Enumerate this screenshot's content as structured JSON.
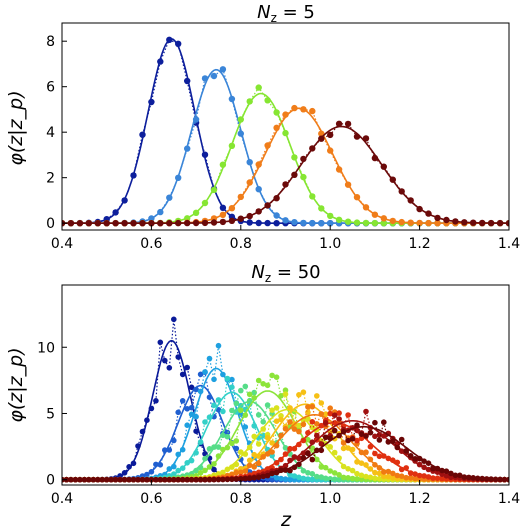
{
  "figure": {
    "xlabel": "z"
  },
  "chart_data": [
    {
      "type": "line",
      "title": "N_z = 5",
      "title_main": "N",
      "title_sub": "z",
      "title_rest": " = 5",
      "ylabel": "φ(z|z_p)",
      "xlim": [
        0.4,
        1.4
      ],
      "ylim": [
        -0.3,
        8.8
      ],
      "xticks": [
        "0.4",
        "0.6",
        "0.8",
        "1.0",
        "1.2",
        "1.4"
      ],
      "yticks": [
        "0",
        "2",
        "4",
        "6",
        "8"
      ],
      "grid": false,
      "series": [
        {
          "mu": 0.645,
          "sigma": 0.052,
          "amp": 8.1,
          "color": "#0d1f9c"
        },
        {
          "mu": 0.745,
          "sigma": 0.055,
          "amp": 6.75,
          "color": "#3a85d8"
        },
        {
          "mu": 0.845,
          "sigma": 0.065,
          "amp": 5.7,
          "color": "#86e632"
        },
        {
          "mu": 0.93,
          "sigma": 0.075,
          "amp": 5.05,
          "color": "#f07d1a"
        },
        {
          "mu": 1.025,
          "sigma": 0.09,
          "amp": 4.25,
          "color": "#6b0a0a"
        }
      ]
    },
    {
      "type": "line",
      "title": "N_z = 50",
      "title_main": "N",
      "title_sub": "z",
      "title_rest": " = 50",
      "ylabel": "φ(z|z_p)",
      "xlim": [
        0.4,
        1.4
      ],
      "ylim": [
        -0.4,
        14.7
      ],
      "xticks": [
        "0.4",
        "0.6",
        "0.8",
        "1.0",
        "1.2",
        "1.4"
      ],
      "yticks": [
        "0",
        "5",
        "10"
      ],
      "grid": false,
      "series": [
        {
          "mu": 0.645,
          "sigma": 0.042,
          "amp": 10.5,
          "color": "#0a1a99"
        },
        {
          "mu": 0.71,
          "sigma": 0.05,
          "amp": 7.1,
          "color": "#1f5fd0"
        },
        {
          "mu": 0.745,
          "sigma": 0.048,
          "amp": 8.4,
          "color": "#1ea0e0"
        },
        {
          "mu": 0.78,
          "sigma": 0.055,
          "amp": 6.6,
          "color": "#33d0c8"
        },
        {
          "mu": 0.82,
          "sigma": 0.06,
          "amp": 5.9,
          "color": "#55dd88"
        },
        {
          "mu": 0.86,
          "sigma": 0.065,
          "amp": 6.7,
          "color": "#8ce43a"
        },
        {
          "mu": 0.905,
          "sigma": 0.07,
          "amp": 5.3,
          "color": "#d9e21e"
        },
        {
          "mu": 0.945,
          "sigma": 0.072,
          "amp": 5.7,
          "color": "#f6c015"
        },
        {
          "mu": 0.965,
          "sigma": 0.08,
          "amp": 4.9,
          "color": "#f07a12"
        },
        {
          "mu": 1.01,
          "sigma": 0.085,
          "amp": 4.3,
          "color": "#e03010"
        },
        {
          "mu": 1.05,
          "sigma": 0.09,
          "amp": 4.45,
          "color": "#a01010"
        },
        {
          "mu": 1.075,
          "sigma": 0.095,
          "amp": 4.0,
          "color": "#6a0606"
        }
      ]
    }
  ]
}
